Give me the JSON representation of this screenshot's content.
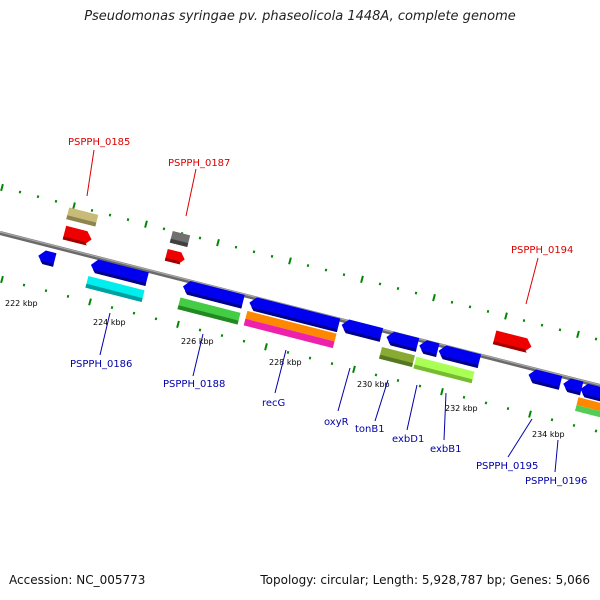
{
  "title": "Pseudomonas syringae pv. phaseolicola 1448A, complete genome",
  "accession": "Accession: NC_005773",
  "summary": "Topology: circular; Length: 5,928,787 bp; Genes: 5,066",
  "colors": {
    "forward_label": "#dd0000",
    "reverse_label": "#0000aa",
    "backbone": "#808080",
    "tick": "#008800",
    "cds_blue": "#0000ee",
    "cds_red": "#ee0000"
  },
  "kbp_ticks": [
    "222 kbp",
    "224 kbp",
    "226 kbp",
    "228 kbp",
    "230 kbp",
    "232 kbp",
    "234 kbp"
  ],
  "forward_labels": [
    "PSPPH_0185",
    "PSPPH_0187",
    "PSPPH_0194"
  ],
  "reverse_labels": [
    "PSPPH_0186",
    "PSPPH_0188",
    "recG",
    "oxyR",
    "tonB1",
    "exbD1",
    "exbB1",
    "PSPPH_0195",
    "PSPPH_0196"
  ]
}
